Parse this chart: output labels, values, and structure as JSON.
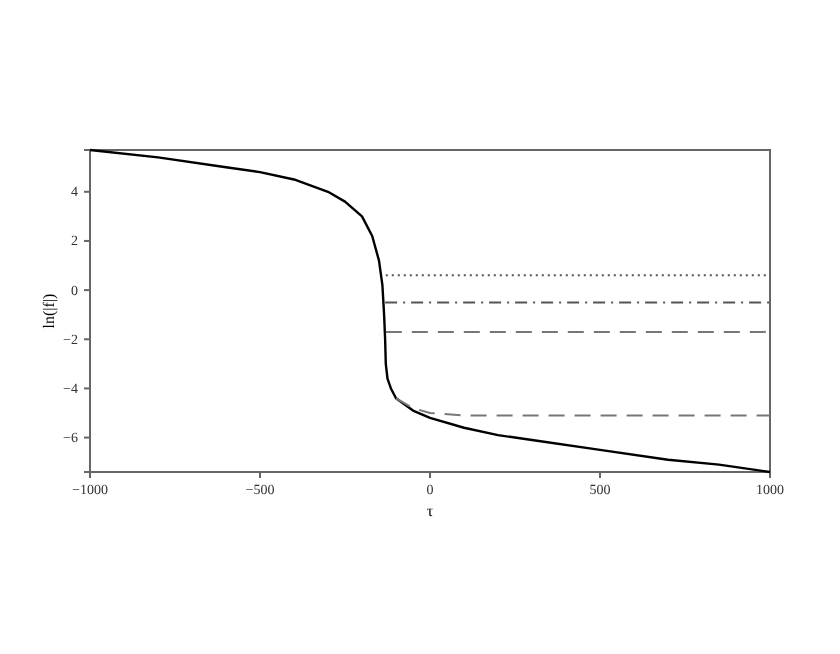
{
  "chart_data": {
    "type": "line",
    "xlabel": "τ",
    "ylabel": "ln(|f|)",
    "xlim": [
      -1000,
      1000
    ],
    "ylim": [
      -7.4,
      5.7
    ],
    "xticks": [
      -1000,
      -500,
      0,
      500,
      1000
    ],
    "yticks": [
      -6,
      -4,
      -2,
      0,
      2,
      4
    ],
    "grid": false,
    "marker": "none",
    "series": [
      {
        "color": "#000000",
        "line_style": "solid",
        "x": [
          -1000,
          -800,
          -600,
          -500,
          -400,
          -300,
          -250,
          -200,
          -170,
          -150,
          -140,
          -135,
          -132,
          -130,
          -125,
          -115,
          -100,
          -50,
          0,
          100,
          200,
          300,
          500,
          700,
          850,
          1000
        ],
        "values": [
          5.7,
          5.4,
          5.0,
          4.8,
          4.5,
          4.0,
          3.6,
          3.0,
          2.2,
          1.2,
          0.2,
          -1,
          -2,
          -3,
          -3.6,
          -4.0,
          -4.4,
          -4.9,
          -5.2,
          -5.6,
          -5.9,
          -6.1,
          -6.5,
          -6.9,
          -7.1,
          -7.4
        ]
      },
      {
        "color": "#555555",
        "line_style": "dotted",
        "x": [
          -130,
          1000
        ],
        "values": [
          0.6,
          0.6
        ]
      },
      {
        "color": "#555555",
        "line_style": "dashdot",
        "x": [
          -132,
          1000
        ],
        "values": [
          -0.5,
          -0.5
        ]
      },
      {
        "color": "#777777",
        "line_style": "dashed",
        "x": [
          -130,
          1000
        ],
        "values": [
          -1.7,
          -1.7
        ]
      },
      {
        "color": "#777777",
        "line_style": "dashed",
        "x": [
          -100,
          -50,
          0,
          100,
          300,
          1000
        ],
        "values": [
          -4.4,
          -4.8,
          -5.0,
          -5.1,
          -5.1,
          -5.1
        ]
      }
    ]
  }
}
